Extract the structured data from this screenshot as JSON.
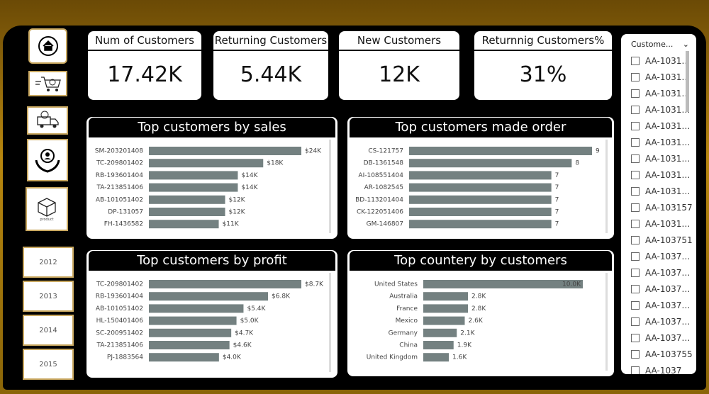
{
  "nav": {
    "product_label": "product",
    "years": [
      "2012",
      "2013",
      "2014",
      "2015"
    ]
  },
  "kpis": [
    {
      "title": "Num of Customers",
      "value": "17.42K"
    },
    {
      "title": "Returning Customers",
      "value": "5.44K"
    },
    {
      "title": "New Customers",
      "value": "12K"
    },
    {
      "title": "Returnnig Customers%",
      "value": "31%"
    }
  ],
  "charts": [
    {
      "type": "bar",
      "title": "Top customers by sales",
      "color": "#748181",
      "categories": [
        "SM-203201408",
        "TC-209801402",
        "RB-193601404",
        "TA-213851406",
        "AB-101051402",
        "DP-131057",
        "FH-1436582"
      ],
      "values": [
        24000,
        18000,
        14000,
        14000,
        12000,
        12000,
        11000
      ],
      "value_labels": [
        "$24K",
        "$18K",
        "$14K",
        "$14K",
        "$12K",
        "$12K",
        "$11K"
      ]
    },
    {
      "type": "bar",
      "title": "Top customers made order",
      "color": "#748181",
      "categories": [
        "CS-121757",
        "DB-1361548",
        "AI-108551404",
        "AR-1082545",
        "BD-113201404",
        "CK-122051406",
        "GM-146807"
      ],
      "values": [
        9,
        8,
        7,
        7,
        7,
        7,
        7
      ]
    },
    {
      "type": "bar",
      "title": "Top customers by profit",
      "color": "#748181",
      "categories": [
        "TC-209801402",
        "RB-193601404",
        "AB-101051402",
        "HL-150401406",
        "SC-200951402",
        "TA-213851406",
        "PJ-1883564"
      ],
      "values": [
        8700,
        6800,
        5400,
        5000,
        4700,
        4600,
        4000
      ],
      "value_labels": [
        "$8.7K",
        "$6.8K",
        "$5.4K",
        "$5.0K",
        "$4.7K",
        "$4.6K",
        "$4.0K"
      ]
    },
    {
      "type": "bar",
      "title": "Top countery by customers",
      "color": "#748181",
      "categories": [
        "United States",
        "Australia",
        "France",
        "Mexico",
        "Germany",
        "China",
        "United Kingdom"
      ],
      "values": [
        10000,
        2800,
        2800,
        2600,
        2100,
        1900,
        1600
      ],
      "value_labels": [
        "10.0K",
        "2.8K",
        "2.8K",
        "2.6K",
        "2.1K",
        "1.9K",
        "1.6K"
      ]
    }
  ],
  "slicer": {
    "title": "Custome...",
    "items": [
      "AA-1031…",
      "AA-1031…",
      "AA-1031…",
      "AA-1031…",
      "AA-1031…",
      "AA-1031…",
      "AA-1031…",
      "AA-1031…",
      "AA-1031…",
      "AA-103157",
      "AA-1031…",
      "AA-103751",
      "AA-1037…",
      "AA-1037…",
      "AA-1037…",
      "AA-1037…",
      "AA-1037…",
      "AA-1037…",
      "AA-103755",
      "AA-1037"
    ]
  }
}
